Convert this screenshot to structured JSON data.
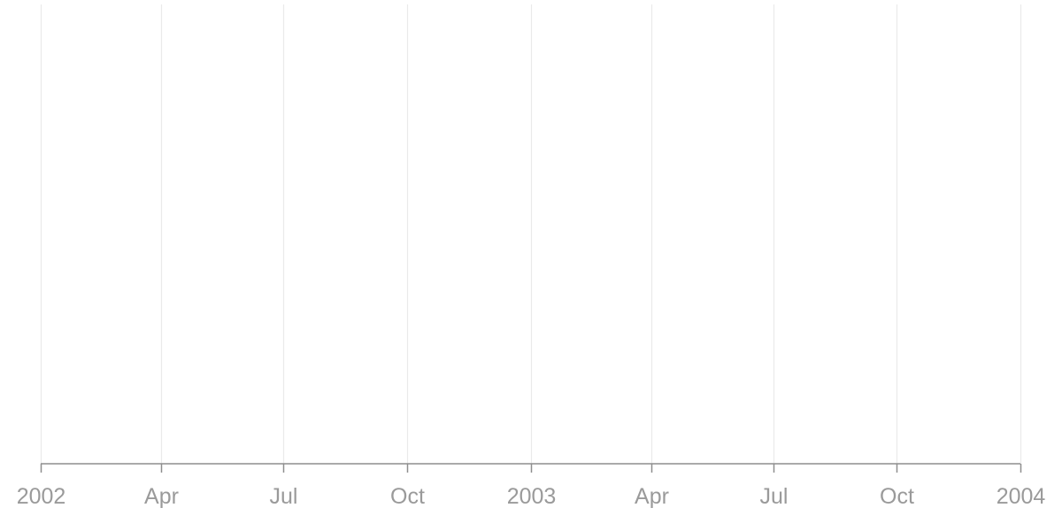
{
  "chart_data": {
    "type": "line",
    "title": "",
    "xlabel": "",
    "ylabel": "",
    "x_axis": {
      "scale": "time",
      "range": [
        "2002-01-01",
        "2004-01-01"
      ],
      "ticks": [
        {
          "date": "2002-01-01",
          "label": "2002"
        },
        {
          "date": "2002-04-01",
          "label": "Apr"
        },
        {
          "date": "2002-07-01",
          "label": "Jul"
        },
        {
          "date": "2002-10-01",
          "label": "Oct"
        },
        {
          "date": "2003-01-01",
          "label": "2003"
        },
        {
          "date": "2003-04-01",
          "label": "Apr"
        },
        {
          "date": "2003-07-01",
          "label": "Jul"
        },
        {
          "date": "2003-10-01",
          "label": "Oct"
        },
        {
          "date": "2004-01-01",
          "label": "2004"
        }
      ]
    },
    "y_axis": {
      "visible": false
    },
    "grid": {
      "vertical": true,
      "horizontal": false
    },
    "legend": "none",
    "series": [],
    "colors": {
      "gridline": "#eaeaea",
      "axis": "#8e8e8e",
      "tick_label": "#9a9a9a",
      "background": "#ffffff"
    }
  }
}
